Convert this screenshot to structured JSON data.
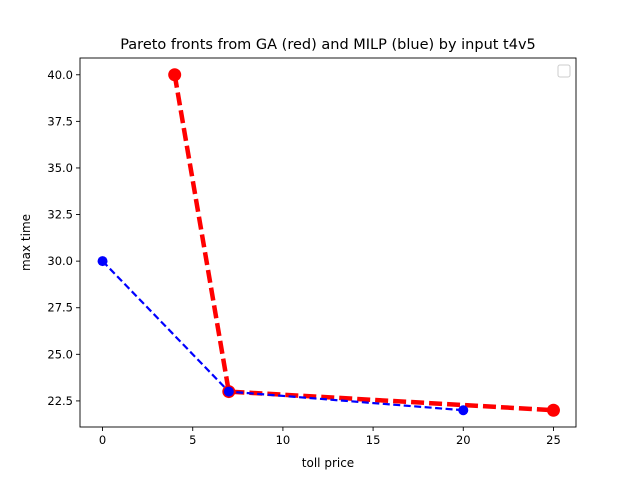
{
  "chart_data": {
    "type": "line",
    "title": "Pareto fronts from GA (red) and MILP (blue) by input t4v5",
    "xlabel": "toll price",
    "ylabel": "max time",
    "xlim": [
      -1.25,
      26.25
    ],
    "ylim": [
      21.1,
      40.9
    ],
    "xticks": [
      0,
      5,
      10,
      15,
      20,
      25
    ],
    "yticks": [
      22.5,
      25.0,
      27.5,
      30.0,
      32.5,
      35.0,
      37.5,
      40.0
    ],
    "xtick_labels": [
      "0",
      "5",
      "10",
      "15",
      "20",
      "25"
    ],
    "ytick_labels": [
      "22.5",
      "25.0",
      "27.5",
      "30.0",
      "32.5",
      "35.0",
      "37.5",
      "40.0"
    ],
    "grid": false,
    "legend": {
      "placement": "top-right",
      "entries": []
    },
    "series": [
      {
        "color": "#ff0000",
        "line_style": "dashed",
        "marker": "circle",
        "points": [
          {
            "x": 4,
            "y": 40
          },
          {
            "x": 7,
            "y": 23
          },
          {
            "x": 25,
            "y": 22
          }
        ]
      },
      {
        "color": "#0000ff",
        "line_style": "dashed",
        "marker": "circle",
        "points": [
          {
            "x": 0,
            "y": 30
          },
          {
            "x": 7,
            "y": 23
          },
          {
            "x": 20,
            "y": 22
          }
        ]
      }
    ]
  }
}
